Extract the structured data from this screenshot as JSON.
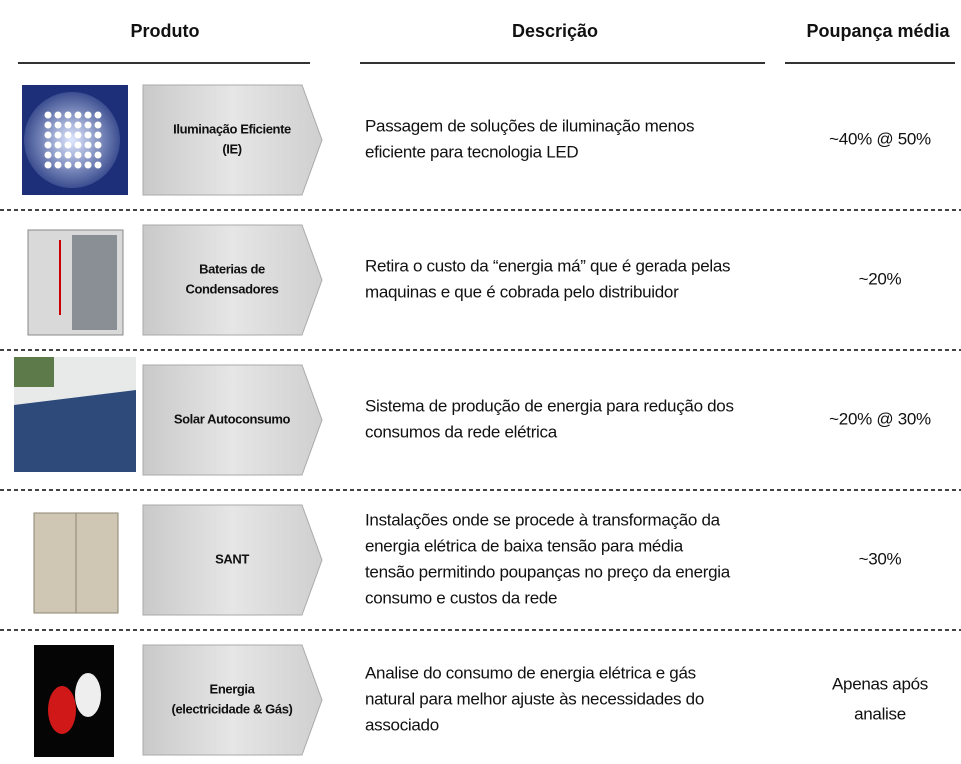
{
  "header": {
    "columns": [
      "Produto",
      "Descrição",
      "Poupança média"
    ]
  },
  "rows": [
    {
      "product": [
        "Iluminação Eficiente",
        "(IE)"
      ],
      "description": [
        "Passagem de soluções de iluminação menos",
        "eficiente para tecnologia LED"
      ],
      "saving": [
        "~40% @ 50%"
      ]
    },
    {
      "product": [
        "Baterias de",
        "Condensadores"
      ],
      "description": [
        "Retira o custo da “energia má” que é gerada pelas",
        "maquinas e que é cobrada pelo distribuidor"
      ],
      "saving": [
        "~20%"
      ]
    },
    {
      "product": [
        "Solar Autoconsumo"
      ],
      "description": [
        "Sistema de produção de energia para redução dos",
        "consumos da rede elétrica"
      ],
      "saving": [
        "~20% @ 30%"
      ]
    },
    {
      "product": [
        "SANT"
      ],
      "description": [
        "Instalações onde se procede à transformação da",
        "energia elétrica de baixa tensão para média",
        "tensão permitindo poupanças no preço da energia",
        "consumo e custos da rede"
      ],
      "saving": [
        "~30%"
      ]
    },
    {
      "product": [
        "Energia",
        "(electricidade & Gás)"
      ],
      "description": [
        "Analise do consumo de energia elétrica e gás",
        "natural para melhor ajuste às necessidades do",
        "associado"
      ],
      "saving": [
        "Apenas após",
        "analise"
      ]
    }
  ]
}
